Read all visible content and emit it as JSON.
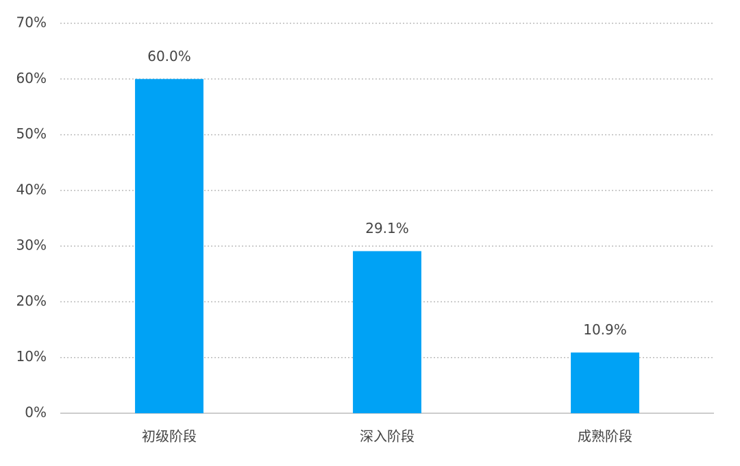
{
  "chart_data": {
    "type": "bar",
    "categories": [
      "初级阶段",
      "深入阶段",
      "成熟阶段"
    ],
    "values": [
      60.0,
      29.1,
      10.9
    ],
    "value_labels": [
      "60.0%",
      "29.1%",
      "10.9%"
    ],
    "color": "#00a2f5",
    "ylim": [
      0,
      70
    ],
    "yticks": [
      {
        "value": 0,
        "label": "0%"
      },
      {
        "value": 10,
        "label": "10%"
      },
      {
        "value": 20,
        "label": "20%"
      },
      {
        "value": 30,
        "label": "30%"
      },
      {
        "value": 40,
        "label": "40%"
      },
      {
        "value": 50,
        "label": "50%"
      },
      {
        "value": 60,
        "label": "60%"
      },
      {
        "value": 70,
        "label": "70%"
      }
    ],
    "grid": true
  }
}
